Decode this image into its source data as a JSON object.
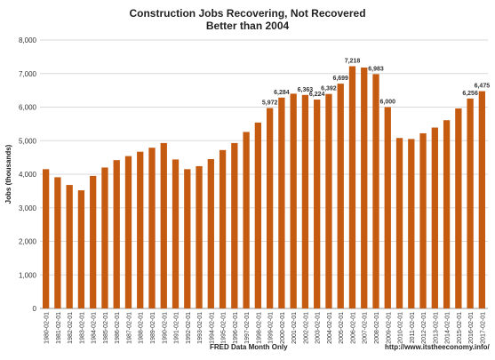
{
  "chart_data": {
    "type": "bar",
    "title": "Construction Jobs Recovering, Not Recovered",
    "subtitle": "Better than 2004",
    "ylabel": "Jobs (thousands)",
    "xlabel": "",
    "ylim": [
      0,
      8000
    ],
    "yticks": [
      "0",
      "1,000",
      "2,000",
      "3,000",
      "4,000",
      "5,000",
      "6,000",
      "7,000",
      "8,000"
    ],
    "grid": true,
    "bar_color": "#C55A11",
    "categories": [
      "1980-02-01",
      "1981-02-01",
      "1982-02-01",
      "1983-02-01",
      "1984-02-01",
      "1985-02-01",
      "1986-02-01",
      "1987-02-01",
      "1988-02-01",
      "1989-02-01",
      "1990-02-01",
      "1991-02-01",
      "1992-02-01",
      "1993-02-01",
      "1994-02-01",
      "1995-02-01",
      "1996-02-01",
      "1997-02-01",
      "1998-02-01",
      "1999-02-01",
      "2000-02-01",
      "2001-02-01",
      "2002-02-01",
      "2003-02-01",
      "2004-02-01",
      "2005-02-01",
      "2006-02-01",
      "2007-02-01",
      "2008-02-01",
      "2009-02-01",
      "2010-02-01",
      "2011-02-01",
      "2012-02-01",
      "2013-02-01",
      "2014-02-01",
      "2015-02-01",
      "2016-02-01",
      "2017-02-01"
    ],
    "values": [
      4150,
      3910,
      3680,
      3520,
      3950,
      4200,
      4420,
      4540,
      4670,
      4790,
      4930,
      4440,
      4150,
      4240,
      4450,
      4720,
      4930,
      5260,
      5540,
      5972,
      6284,
      6400,
      6363,
      6224,
      6392,
      6699,
      7218,
      7180,
      6983,
      6000,
      5080,
      5050,
      5220,
      5390,
      5610,
      5960,
      6256,
      6475
    ],
    "data_labels": [
      {
        "category": "1999-02-01",
        "text": "5,972"
      },
      {
        "category": "2000-02-01",
        "text": "6,284"
      },
      {
        "category": "2002-02-01",
        "text": "6,363"
      },
      {
        "category": "2003-02-01",
        "text": "6,224"
      },
      {
        "category": "2004-02-01",
        "text": "6,392"
      },
      {
        "category": "2005-02-01",
        "text": "6,699"
      },
      {
        "category": "2006-02-01",
        "text": "7,218"
      },
      {
        "category": "2008-02-01",
        "text": "6,983"
      },
      {
        "category": "2009-02-01",
        "text": "6,000"
      },
      {
        "category": "2016-02-01",
        "text": "6,256"
      },
      {
        "category": "2017-02-01",
        "text": "6,475"
      }
    ]
  },
  "footer": {
    "source": "FRED Data  Month Only",
    "url": "http://www.itstheeconomy.info/"
  }
}
